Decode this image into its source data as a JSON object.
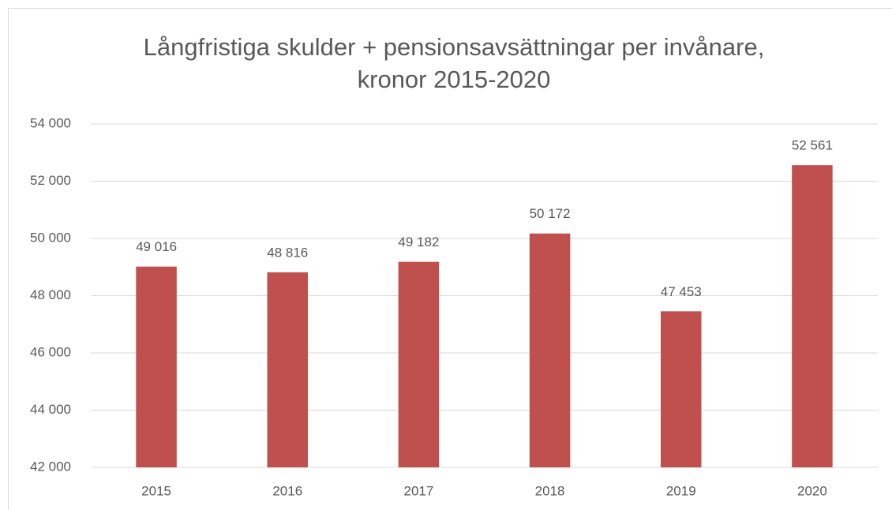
{
  "chart_data": {
    "type": "bar",
    "title": [
      "Långfristiga skulder + pensionsavsättningar per invånare,",
      "kronor 2015-2020"
    ],
    "categories": [
      "2015",
      "2016",
      "2017",
      "2018",
      "2019",
      "2020"
    ],
    "values": [
      49016,
      48816,
      49182,
      50172,
      47453,
      52561
    ],
    "value_labels": [
      "49 016",
      "48 816",
      "49 182",
      "50 172",
      "47 453",
      "52 561"
    ],
    "color": "#c0504d",
    "ylim": [
      42000,
      54000
    ],
    "yticks": [
      {
        "value": 42000,
        "label": "42 000"
      },
      {
        "value": 44000,
        "label": "44 000"
      },
      {
        "value": 46000,
        "label": "46 000"
      },
      {
        "value": 48000,
        "label": "48 000"
      },
      {
        "value": 50000,
        "label": "50 000"
      },
      {
        "value": 52000,
        "label": "52 000"
      },
      {
        "value": 54000,
        "label": "54 000"
      }
    ],
    "grid": true
  }
}
